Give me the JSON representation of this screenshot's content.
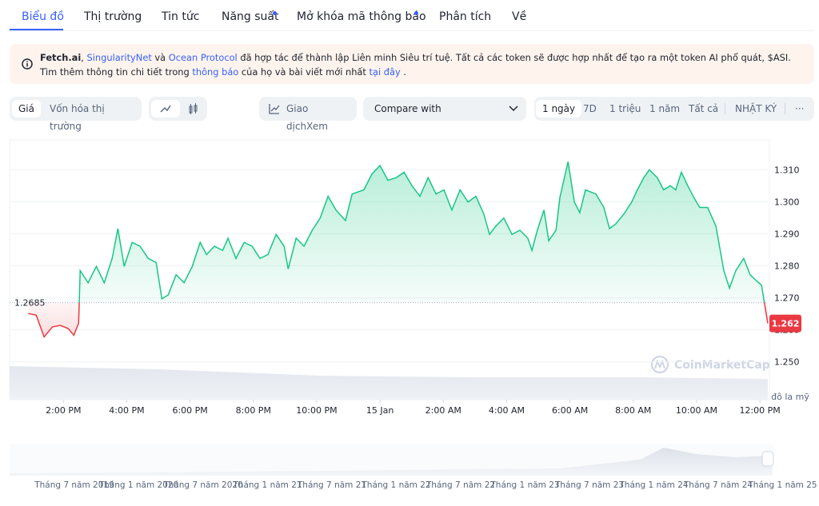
{
  "tabs": [
    "Biểu đồ",
    "Thị trường",
    "Tin tức",
    "Năng suất",
    "Mở khóa mã thông báo",
    "Phân tích",
    "Về"
  ],
  "notice": [
    "Fetch.ai",
    ", ",
    "SingularityNet",
    " và ",
    "Ocean Protocol",
    " đã hợp tác để thành lập Liên minh Siêu trí tuệ. Tất cả các token sẽ được hợp nhất để tạo ra một token AI phổ quát, $ASI. Tìm thêm thông tin chi tiết trong ",
    "thông báo",
    " của họ và bài viết mới nhất ",
    "tại đây",
    " ."
  ],
  "toolbar": {
    "price_toggle": [
      "Giá",
      "Vốn hóa thị trường"
    ],
    "trade_view": "Giao dịchXem",
    "compare": "Compare with",
    "ranges": [
      "1 ngày",
      "7D",
      "1 triệu",
      "1 năm",
      "Tất cả",
      "NHẬT KÝ"
    ],
    "more": "···"
  },
  "chart_data": {
    "type": "line",
    "x": [
      12.89,
      13.14,
      13.39,
      13.65,
      13.9,
      14.15,
      14.33,
      14.48,
      14.53,
      14.78,
      15.04,
      15.29,
      15.54,
      15.72,
      15.92,
      16.17,
      16.42,
      16.68,
      16.93,
      17.11,
      17.31,
      17.56,
      17.81,
      18.07,
      18.32,
      18.52,
      18.77,
      19.03,
      19.2,
      19.45,
      19.71,
      19.96,
      20.21,
      20.46,
      20.72,
      20.97,
      21.1,
      21.35,
      21.6,
      21.86,
      22.11,
      22.36,
      22.61,
      22.91,
      23.12,
      23.49,
      23.75,
      24.0,
      24.25,
      24.51,
      24.76,
      25.01,
      25.26,
      25.52,
      25.77,
      26.02,
      26.27,
      26.53,
      26.78,
      27.03,
      27.28,
      27.46,
      27.66,
      27.91,
      28.17,
      28.42,
      28.67,
      28.8,
      28.97,
      29.18,
      29.33,
      29.56,
      29.68,
      29.94,
      30.14,
      30.31,
      30.49,
      30.82,
      31.07,
      31.25,
      31.45,
      31.7,
      31.95,
      32.13,
      32.33,
      32.51,
      32.76,
      32.96,
      33.17,
      33.34,
      33.52,
      33.72,
      33.92,
      34.1,
      34.35,
      34.61,
      34.86,
      35.04,
      35.24,
      35.49,
      35.69,
      35.87,
      36.05,
      36.25
    ],
    "values": [
      1.2651,
      1.2646,
      1.2578,
      1.2609,
      1.2614,
      1.2604,
      1.2583,
      1.2621,
      1.2785,
      1.2747,
      1.2798,
      1.2747,
      1.2823,
      1.2916,
      1.2798,
      1.2873,
      1.2861,
      1.2823,
      1.281,
      1.2697,
      1.2709,
      1.2772,
      1.2747,
      1.2798,
      1.2873,
      1.2835,
      1.2861,
      1.2848,
      1.2886,
      1.2823,
      1.2873,
      1.2861,
      1.2823,
      1.2835,
      1.2898,
      1.2861,
      1.279,
      1.2886,
      1.2861,
      1.2911,
      1.2949,
      1.3017,
      1.2974,
      1.2941,
      1.3024,
      1.3037,
      1.3087,
      1.3113,
      1.3067,
      1.3075,
      1.3092,
      1.305,
      1.3017,
      1.3075,
      1.3024,
      1.3037,
      1.2974,
      1.3037,
      1.2999,
      1.3017,
      1.2961,
      1.2898,
      1.2924,
      1.2949,
      1.2898,
      1.2911,
      1.2886,
      1.2848,
      1.2911,
      1.2974,
      1.2878,
      1.2911,
      1.3012,
      1.3125,
      1.2999,
      1.2966,
      1.3037,
      1.3024,
      1.2982,
      1.2916,
      1.2931,
      1.2961,
      1.2999,
      1.3037,
      1.3075,
      1.31,
      1.3075,
      1.3037,
      1.305,
      1.3037,
      1.3092,
      1.305,
      1.3012,
      1.2982,
      1.2982,
      1.2924,
      1.2785,
      1.273,
      1.2785,
      1.2823,
      1.2772,
      1.2755,
      1.274,
      1.262
    ],
    "baseline": 1.2685,
    "last_price": 1.262,
    "color_up": "#16c784",
    "color_down": "#ea3943",
    "xlim": [
      12.3,
      36.25
    ],
    "xticks": [
      {
        "value": 14,
        "label": "2:00 PM"
      },
      {
        "value": 16,
        "label": "4:00 PM"
      },
      {
        "value": 18,
        "label": "6:00 PM"
      },
      {
        "value": 20,
        "label": "8:00 PM"
      },
      {
        "value": 22,
        "label": "10:00 PM"
      },
      {
        "value": 24,
        "label": "15 Jan"
      },
      {
        "value": 26,
        "label": "2:00 AM"
      },
      {
        "value": 28,
        "label": "4:00 AM"
      },
      {
        "value": 30,
        "label": "6:00 AM"
      },
      {
        "value": 32,
        "label": "8:00 AM"
      },
      {
        "value": 34,
        "label": "10:00 AM"
      },
      {
        "value": 36,
        "label": "12:00 PM"
      }
    ],
    "ylim": [
      1.2382,
      1.3193
    ],
    "yticks": [
      {
        "value": 1.25,
        "label": "1.250"
      },
      {
        "value": 1.26,
        "label": "1.260"
      },
      {
        "value": 1.27,
        "label": "1.270"
      },
      {
        "value": 1.28,
        "label": "1.280"
      },
      {
        "value": 1.29,
        "label": "1.290"
      },
      {
        "value": 1.3,
        "label": "1.300"
      },
      {
        "value": 1.31,
        "label": "1.310"
      }
    ],
    "grid": true,
    "y_unit": "đô la mỹ",
    "watermark": "CoinMarketCap",
    "navigator_labels": [
      "Tháng 7 năm 2019",
      "Tháng 1 năm 2020",
      "Tháng 7 năm 2020",
      "Tháng 1 năm 21",
      "Tháng 7 năm 21",
      "Tháng 1 năm 22",
      "Tháng 7 năm 22",
      "Tháng 1 năm 23",
      "Tháng 7 năm 23",
      "Tháng 1 năm 24",
      "Tháng 7 năm 24",
      "Tháng 1 năm 25"
    ]
  }
}
